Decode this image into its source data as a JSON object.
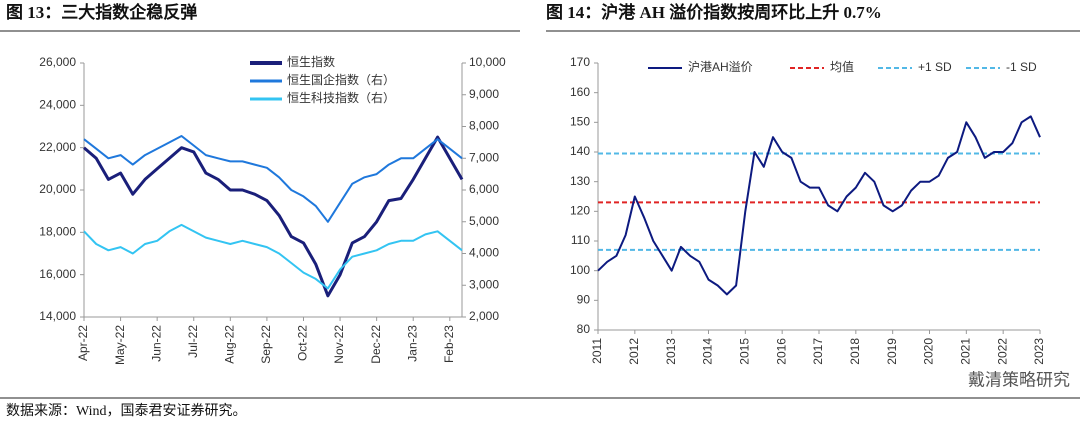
{
  "chart_data": [
    {
      "type": "line",
      "title": "图 13：三大指数企稳反弹",
      "legend": "upper center",
      "categories": [
        "Apr-22",
        null,
        null,
        "May-22",
        null,
        null,
        "Jun-22",
        null,
        null,
        "Jul-22",
        null,
        null,
        "Aug-22",
        null,
        null,
        "Sep-22",
        null,
        null,
        "Oct-22",
        null,
        null,
        "Nov-22",
        null,
        null,
        "Dec-22",
        null,
        null,
        "Jan-23",
        null,
        null,
        "Feb-23",
        null
      ],
      "series": [
        {
          "name": "恒生指数",
          "color": "#1a1f7a",
          "values": [
            22000,
            21500,
            20500,
            20800,
            19800,
            20500,
            21000,
            21500,
            22000,
            21800,
            20800,
            20500,
            20000,
            20000,
            19800,
            19500,
            18800,
            17800,
            17500,
            16500,
            15000,
            16000,
            17500,
            17800,
            18500,
            19500,
            19600,
            20500,
            21500,
            22500,
            21500,
            20500
          ]
        },
        {
          "name": "恒生国企指数（右）",
          "color": "#1f78dc",
          "axis": "y2",
          "values": [
            7600,
            7300,
            7000,
            7100,
            6800,
            7100,
            7300,
            7500,
            7700,
            7400,
            7100,
            7000,
            6900,
            6900,
            6800,
            6700,
            6400,
            6000,
            5800,
            5500,
            5000,
            5600,
            6200,
            6400,
            6500,
            6800,
            7000,
            7000,
            7300,
            7600,
            7300,
            7000
          ]
        },
        {
          "name": "恒生科技指数（右）",
          "color": "#33c4f2",
          "axis": "y2",
          "values": [
            4700,
            4300,
            4100,
            4200,
            4000,
            4300,
            4400,
            4700,
            4900,
            4700,
            4500,
            4400,
            4300,
            4400,
            4300,
            4200,
            4000,
            3700,
            3400,
            3200,
            2900,
            3500,
            3900,
            4000,
            4100,
            4300,
            4400,
            4400,
            4600,
            4700,
            4400,
            4100
          ]
        }
      ],
      "ylim": [
        14000,
        26000
      ],
      "yticks": [
        {
          "value": 14000,
          "label": "14,000"
        },
        {
          "value": 16000,
          "label": "16,000"
        },
        {
          "value": 18000,
          "label": "18,000"
        },
        {
          "value": 20000,
          "label": "20,000"
        },
        {
          "value": 22000,
          "label": "22,000"
        },
        {
          "value": 24000,
          "label": "24,000"
        },
        {
          "value": 26000,
          "label": "26,000"
        }
      ],
      "y2lim": [
        2000,
        10000
      ],
      "y2ticks": [
        {
          "value": 2000,
          "label": "2,000"
        },
        {
          "value": 3000,
          "label": "3,000"
        },
        {
          "value": 4000,
          "label": "4,000"
        },
        {
          "value": 5000,
          "label": "5,000"
        },
        {
          "value": 6000,
          "label": "6,000"
        },
        {
          "value": 7000,
          "label": "7,000"
        },
        {
          "value": 8000,
          "label": "8,000"
        },
        {
          "value": 9000,
          "label": "9,000"
        },
        {
          "value": 10000,
          "label": "10,000"
        }
      ]
    },
    {
      "type": "line",
      "title": "图 14：沪港 AH 溢价指数按周环比上升 0.7%",
      "legend": "top",
      "categories": [
        "2011",
        null,
        null,
        null,
        "2012",
        null,
        null,
        null,
        "2013",
        null,
        null,
        null,
        "2014",
        null,
        null,
        null,
        "2015",
        null,
        null,
        null,
        "2016",
        null,
        null,
        null,
        "2017",
        null,
        null,
        null,
        "2018",
        null,
        null,
        null,
        "2019",
        null,
        null,
        null,
        "2020",
        null,
        null,
        null,
        "2021",
        null,
        null,
        null,
        "2022",
        null,
        null,
        null,
        "2023"
      ],
      "series": [
        {
          "name": "沪港AH溢价",
          "color": "#0d1a80",
          "values": [
            100,
            103,
            105,
            112,
            125,
            118,
            110,
            105,
            100,
            108,
            105,
            103,
            97,
            95,
            92,
            95,
            120,
            140,
            135,
            145,
            140,
            138,
            130,
            128,
            128,
            122,
            120,
            125,
            128,
            133,
            130,
            122,
            120,
            122,
            127,
            130,
            130,
            132,
            138,
            140,
            150,
            145,
            138,
            140,
            140,
            143,
            150,
            152,
            145
          ]
        }
      ],
      "hlines": [
        {
          "name": "均值",
          "color": "#e02424",
          "value": 123
        },
        {
          "name": "+1 SD",
          "color": "#52b8e6",
          "value": 139.5
        },
        {
          "name": "-1 SD",
          "color": "#52b8e6",
          "value": 107
        }
      ],
      "ylim": [
        80,
        170
      ],
      "yticks": [
        80,
        90,
        100,
        110,
        120,
        130,
        140,
        150,
        160,
        170
      ]
    }
  ],
  "footer": "数据来源：Wind，国泰君安证券研究。",
  "watermark": "戴清策略研究"
}
